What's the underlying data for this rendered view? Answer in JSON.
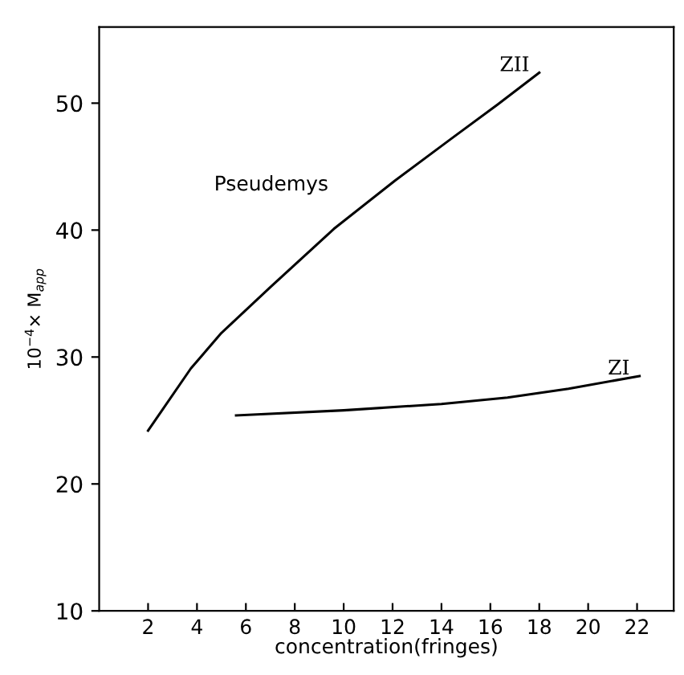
{
  "chart_data": {
    "type": "line",
    "xlabel": "concentration(fringes)",
    "ylabel": "10$^{−4}$× M$_{app}$",
    "annotations": [
      "Pseudemys"
    ],
    "series": [
      {
        "name": "ZII",
        "color": "#000000",
        "x": [
          2.0,
          3.75,
          5.0,
          7.0,
          9.6,
          12.1,
          14.4,
          16.3,
          18.0
        ],
        "values": [
          24.2,
          29.1,
          31.9,
          35.5,
          40.1,
          43.9,
          47.2,
          49.9,
          52.4
        ]
      },
      {
        "name": "ZI",
        "color": "#000000",
        "x": [
          5.6,
          10.0,
          14.0,
          16.7,
          19.2,
          22.1
        ],
        "values": [
          25.4,
          25.8,
          26.3,
          26.8,
          27.5,
          28.5
        ]
      }
    ],
    "xlim": [
      0,
      23.5
    ],
    "ylim": [
      10,
      56
    ],
    "xticks": [
      2,
      4,
      6,
      8,
      10,
      12,
      14,
      16,
      18,
      20,
      22
    ],
    "yticks": [
      10,
      20,
      30,
      40,
      50
    ],
    "grid": false,
    "legend": false,
    "marker": "none",
    "line_style": "solid"
  }
}
